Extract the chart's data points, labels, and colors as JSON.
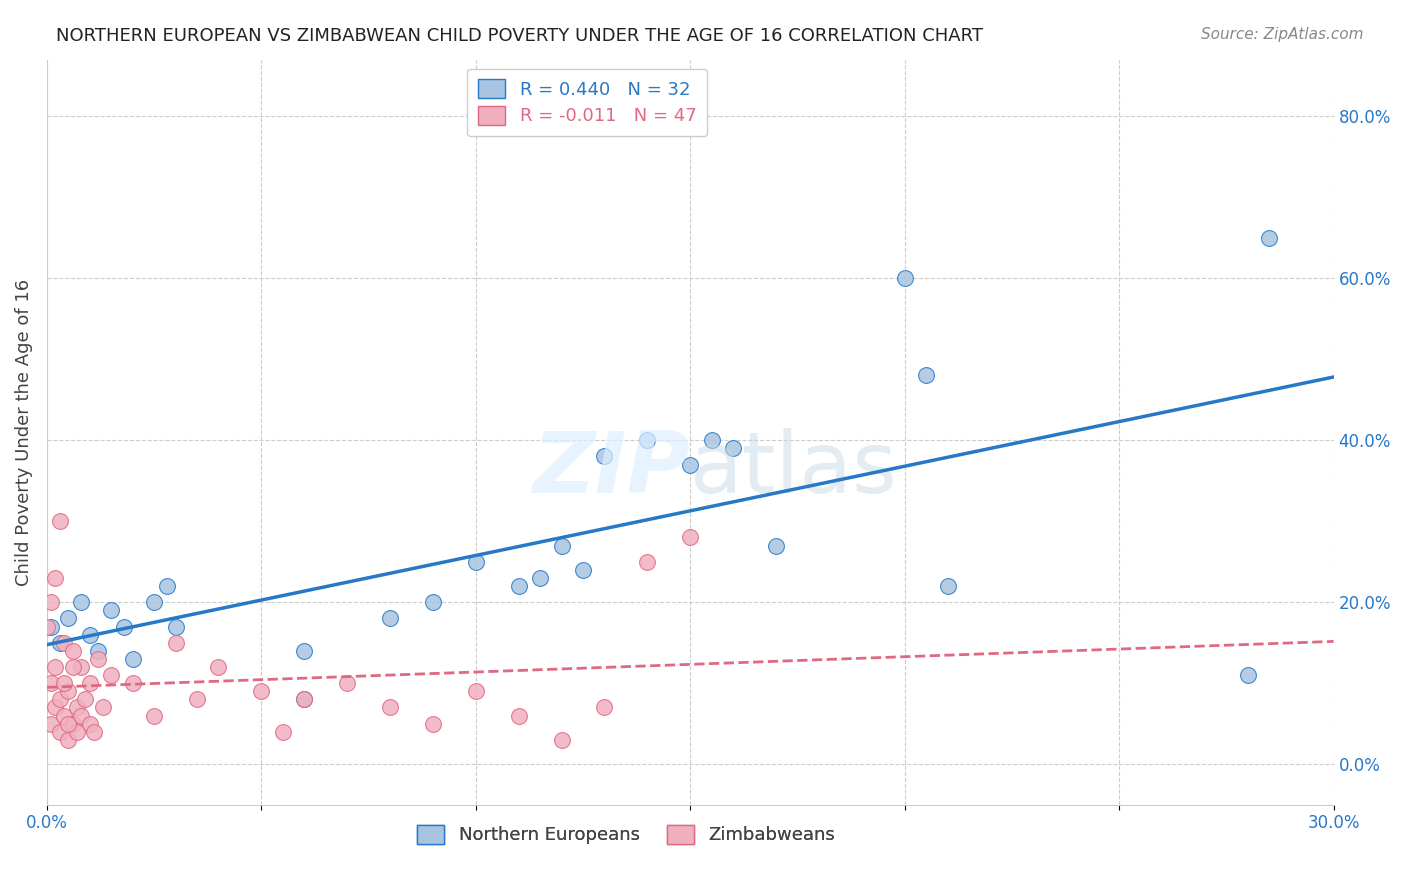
{
  "title": "NORTHERN EUROPEAN VS ZIMBABWEAN CHILD POVERTY UNDER THE AGE OF 16 CORRELATION CHART",
  "source": "Source: ZipAtlas.com",
  "xlabel": "",
  "ylabel": "Child Poverty Under the Age of 16",
  "xlim": [
    0.0,
    0.3
  ],
  "ylim": [
    -0.05,
    0.87
  ],
  "ytick_values": [
    0.0,
    0.2,
    0.4,
    0.6,
    0.8
  ],
  "xtick_values": [
    0.0,
    0.05,
    0.1,
    0.15,
    0.2,
    0.25,
    0.3
  ],
  "xtick_labels": [
    "0.0%",
    "",
    "",
    "",
    "",
    "",
    "30.0%"
  ],
  "legend_blue_label": "R = 0.440   N = 32",
  "legend_pink_label": "R = -0.011   N = 47",
  "legend_northern": "Northern Europeans",
  "legend_zimbabwean": "Zimbabweans",
  "blue_color": "#a8c4e0",
  "blue_line_color": "#2878c8",
  "pink_color": "#f0b0c0",
  "pink_line_color": "#e06880",
  "blue_scatter_x": [
    0.001,
    0.003,
    0.005,
    0.008,
    0.01,
    0.012,
    0.015,
    0.018,
    0.02,
    0.025,
    0.028,
    0.03,
    0.06,
    0.08,
    0.09,
    0.1,
    0.11,
    0.115,
    0.12,
    0.125,
    0.13,
    0.14,
    0.15,
    0.155,
    0.16,
    0.17,
    0.21,
    0.28,
    0.285,
    0.06,
    0.2,
    0.205
  ],
  "blue_scatter_y": [
    0.17,
    0.15,
    0.18,
    0.2,
    0.16,
    0.14,
    0.19,
    0.17,
    0.13,
    0.2,
    0.22,
    0.17,
    0.14,
    0.18,
    0.2,
    0.25,
    0.22,
    0.23,
    0.27,
    0.24,
    0.38,
    0.4,
    0.37,
    0.4,
    0.39,
    0.27,
    0.22,
    0.11,
    0.65,
    0.08,
    0.6,
    0.48
  ],
  "pink_scatter_x": [
    0.001,
    0.001,
    0.002,
    0.002,
    0.003,
    0.003,
    0.004,
    0.004,
    0.005,
    0.005,
    0.006,
    0.006,
    0.007,
    0.007,
    0.008,
    0.008,
    0.009,
    0.01,
    0.01,
    0.011,
    0.012,
    0.013,
    0.015,
    0.02,
    0.025,
    0.03,
    0.035,
    0.04,
    0.05,
    0.055,
    0.06,
    0.07,
    0.08,
    0.09,
    0.1,
    0.11,
    0.12,
    0.13,
    0.14,
    0.15,
    0.0,
    0.001,
    0.002,
    0.003,
    0.004,
    0.005,
    0.006
  ],
  "pink_scatter_y": [
    0.05,
    0.1,
    0.07,
    0.12,
    0.04,
    0.08,
    0.06,
    0.15,
    0.03,
    0.09,
    0.05,
    0.14,
    0.07,
    0.04,
    0.06,
    0.12,
    0.08,
    0.05,
    0.1,
    0.04,
    0.13,
    0.07,
    0.11,
    0.1,
    0.06,
    0.15,
    0.08,
    0.12,
    0.09,
    0.04,
    0.08,
    0.1,
    0.07,
    0.05,
    0.09,
    0.06,
    0.03,
    0.07,
    0.25,
    0.28,
    0.17,
    0.2,
    0.23,
    0.3,
    0.1,
    0.05,
    0.12
  ],
  "background_color": "#ffffff",
  "grid_color": "#cccccc"
}
